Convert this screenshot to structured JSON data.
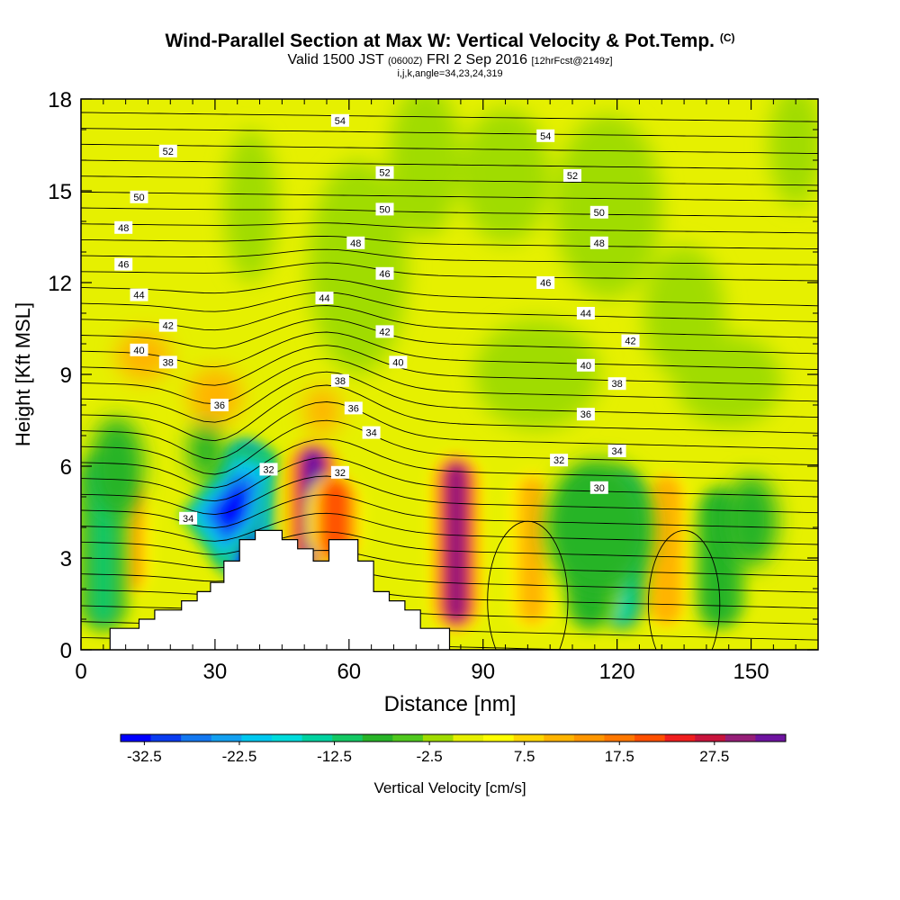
{
  "title": {
    "main": "Wind-Parallel Section at Max W: Vertical Velocity & Pot.Temp.",
    "corner_mark": "(C)",
    "valid_prefix": "Valid 1500 JST",
    "valid_utc": "(0600Z)",
    "valid_date": "FRI 2 Sep 2016",
    "forecast": "[12hrFcst@2149z]",
    "indices": "i,j,k,angle=34,23,24,319"
  },
  "chart_data": {
    "type": "heatmap",
    "xlabel": "Distance [nm]",
    "ylabel": "Height [Kft MSL]",
    "xlim": [
      0,
      165
    ],
    "ylim": [
      0,
      18
    ],
    "xticks": [
      0,
      30,
      60,
      90,
      120,
      150
    ],
    "yticks": [
      0,
      3,
      6,
      9,
      12,
      15,
      18
    ],
    "colorbar": {
      "label": "Vertical Velocity [cm/s]",
      "tick_labels": [
        "-32.5",
        "-22.5",
        "-12.5",
        "-2.5",
        "7.5",
        "17.5",
        "27.5"
      ],
      "tick_values": [
        -32.5,
        -22.5,
        -12.5,
        -2.5,
        7.5,
        17.5,
        27.5
      ],
      "range": [
        -35,
        35
      ],
      "colors": [
        "#0000ff",
        "#0a3cf0",
        "#1478f0",
        "#14a0f0",
        "#00c8f0",
        "#00dcdc",
        "#00d2a0",
        "#14c864",
        "#28b428",
        "#50c81e",
        "#a0dc00",
        "#e6f000",
        "#ffff00",
        "#ffd700",
        "#ffb400",
        "#ff9600",
        "#ff7800",
        "#ff5000",
        "#f01e1e",
        "#c8143c",
        "#961e78",
        "#6e14a0"
      ]
    },
    "updraft_cores_cm_s": [
      {
        "x": 10.5,
        "zmin": 2.0,
        "zmax": 5.5,
        "w": 14
      },
      {
        "x": 52,
        "zmin": 3.0,
        "zmax": 6.5,
        "w": 34
      },
      {
        "x": 57,
        "zmin": 3.0,
        "zmax": 5.5,
        "w": 22
      },
      {
        "x": 84,
        "zmin": 1.0,
        "zmax": 6.0,
        "w": 30
      },
      {
        "x": 101,
        "zmin": 1.0,
        "zmax": 5.5,
        "w": 11
      },
      {
        "x": 131,
        "zmin": 1.0,
        "zmax": 5.5,
        "w": 12
      }
    ],
    "downdraft_cores_cm_s": [
      {
        "x": 37,
        "zmin": 2.5,
        "zmax": 6.5,
        "w": -33
      },
      {
        "x": 5,
        "zmin": 1.0,
        "zmax": 6.0,
        "w": -10
      },
      {
        "x": 121,
        "zmin": 1.0,
        "zmax": 5.5,
        "w": -14
      },
      {
        "x": 114,
        "zmin": 1.0,
        "zmax": 5.5,
        "w": -8
      },
      {
        "x": 143,
        "zmin": 1.0,
        "zmax": 5.0,
        "w": -8
      }
    ],
    "terrain_nm_kft": [
      [
        0,
        0
      ],
      [
        6.5,
        0
      ],
      [
        6.5,
        0.7
      ],
      [
        13,
        0.7
      ],
      [
        13,
        1.0
      ],
      [
        16.5,
        1.0
      ],
      [
        16.5,
        1.3
      ],
      [
        22.5,
        1.3
      ],
      [
        22.5,
        1.6
      ],
      [
        26,
        1.6
      ],
      [
        26,
        1.9
      ],
      [
        29,
        1.9
      ],
      [
        29,
        2.2
      ],
      [
        32,
        2.2
      ],
      [
        32,
        2.9
      ],
      [
        35.5,
        2.9
      ],
      [
        35.5,
        3.6
      ],
      [
        39,
        3.6
      ],
      [
        39,
        3.9
      ],
      [
        45,
        3.9
      ],
      [
        45,
        3.6
      ],
      [
        48.5,
        3.6
      ],
      [
        48.5,
        3.3
      ],
      [
        52,
        3.3
      ],
      [
        52,
        2.9
      ],
      [
        55.5,
        2.9
      ],
      [
        55.5,
        3.6
      ],
      [
        62,
        3.6
      ],
      [
        62,
        2.9
      ],
      [
        65.5,
        2.9
      ],
      [
        65.5,
        1.9
      ],
      [
        69,
        1.9
      ],
      [
        69,
        1.6
      ],
      [
        72.5,
        1.6
      ],
      [
        72.5,
        1.3
      ],
      [
        76,
        1.3
      ],
      [
        76,
        0.7
      ],
      [
        82.5,
        0.7
      ],
      [
        82.5,
        0
      ],
      [
        165,
        0
      ]
    ],
    "theta_contour_labels_c": [
      {
        "text": "54",
        "x": 58,
        "z": 17.3
      },
      {
        "text": "54",
        "x": 104,
        "z": 16.8
      },
      {
        "text": "52",
        "x": 19.5,
        "z": 16.3
      },
      {
        "text": "52",
        "x": 68,
        "z": 15.6
      },
      {
        "text": "52",
        "x": 110,
        "z": 15.5
      },
      {
        "text": "50",
        "x": 13,
        "z": 14.8
      },
      {
        "text": "50",
        "x": 68,
        "z": 14.4
      },
      {
        "text": "50",
        "x": 116,
        "z": 14.3
      },
      {
        "text": "48",
        "x": 9.5,
        "z": 13.8
      },
      {
        "text": "48",
        "x": 61.5,
        "z": 13.3
      },
      {
        "text": "48",
        "x": 116,
        "z": 13.3
      },
      {
        "text": "46",
        "x": 9.5,
        "z": 12.6
      },
      {
        "text": "46",
        "x": 68,
        "z": 12.3
      },
      {
        "text": "46",
        "x": 104,
        "z": 12.0
      },
      {
        "text": "44",
        "x": 13,
        "z": 11.6
      },
      {
        "text": "44",
        "x": 54.5,
        "z": 11.5
      },
      {
        "text": "44",
        "x": 113,
        "z": 11.0
      },
      {
        "text": "42",
        "x": 19.5,
        "z": 10.6
      },
      {
        "text": "42",
        "x": 68,
        "z": 10.4
      },
      {
        "text": "42",
        "x": 123,
        "z": 10.1
      },
      {
        "text": "40",
        "x": 13,
        "z": 9.8
      },
      {
        "text": "40",
        "x": 71,
        "z": 9.4
      },
      {
        "text": "40",
        "x": 113,
        "z": 9.3
      },
      {
        "text": "38",
        "x": 19.5,
        "z": 9.4
      },
      {
        "text": "38",
        "x": 58,
        "z": 8.8
      },
      {
        "text": "38",
        "x": 120,
        "z": 8.7
      },
      {
        "text": "36",
        "x": 31,
        "z": 8.0
      },
      {
        "text": "36",
        "x": 61,
        "z": 7.9
      },
      {
        "text": "36",
        "x": 113,
        "z": 7.7
      },
      {
        "text": "34",
        "x": 65,
        "z": 7.1
      },
      {
        "text": "34",
        "x": 120,
        "z": 6.5
      },
      {
        "text": "34",
        "x": 24,
        "z": 4.3
      },
      {
        "text": "32",
        "x": 107,
        "z": 6.2
      },
      {
        "text": "32",
        "x": 42,
        "z": 5.9
      },
      {
        "text": "32",
        "x": 58,
        "z": 5.8
      },
      {
        "text": "30",
        "x": 116,
        "z": 5.3
      }
    ]
  }
}
